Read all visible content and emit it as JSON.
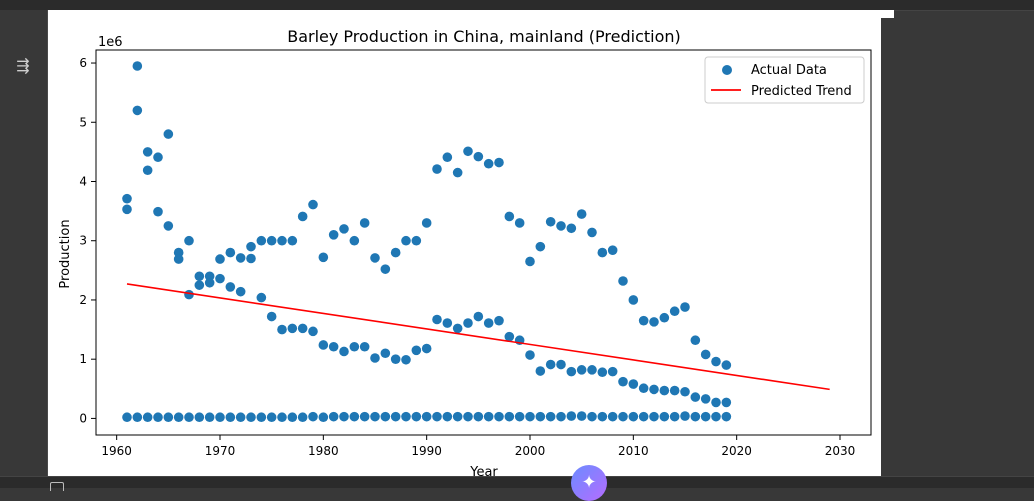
{
  "ui": {
    "gutter_icon": "output-collapse-icon",
    "fab_icon": "sparkle-icon",
    "accent_color": "#1f77b4",
    "trend_color": "#ff0000"
  },
  "chart_data": {
    "type": "scatter",
    "title": "Barley Production in China, mainland (Prediction)",
    "xlabel": "Year",
    "ylabel": "Production",
    "y_offset_label": "1e6",
    "xlim": [
      1958,
      2033
    ],
    "ylim": [
      -0.28,
      6.22
    ],
    "xticks": [
      1960,
      1970,
      1980,
      1990,
      2000,
      2010,
      2020,
      2030
    ],
    "yticks": [
      0,
      1,
      2,
      3,
      4,
      5,
      6
    ],
    "legend_position": "top-right",
    "series": [
      {
        "name": "Actual Data",
        "kind": "scatter",
        "color": "#1f77b4",
        "points": [
          [
            1961,
            3.71
          ],
          [
            1961,
            3.53
          ],
          [
            1962,
            5.95
          ],
          [
            1962,
            5.2
          ],
          [
            1963,
            4.5
          ],
          [
            1963,
            4.19
          ],
          [
            1964,
            4.41
          ],
          [
            1964,
            3.49
          ],
          [
            1965,
            4.8
          ],
          [
            1965,
            3.25
          ],
          [
            1966,
            2.8
          ],
          [
            1966,
            2.69
          ],
          [
            1967,
            3.0
          ],
          [
            1967,
            2.09
          ],
          [
            1968,
            2.4
          ],
          [
            1968,
            2.25
          ],
          [
            1969,
            2.4
          ],
          [
            1969,
            2.29
          ],
          [
            1970,
            2.69
          ],
          [
            1970,
            2.36
          ],
          [
            1971,
            2.8
          ],
          [
            1971,
            2.22
          ],
          [
            1972,
            2.71
          ],
          [
            1972,
            2.14
          ],
          [
            1973,
            2.9
          ],
          [
            1973,
            2.7
          ],
          [
            1974,
            3.0
          ],
          [
            1974,
            2.04
          ],
          [
            1975,
            3.0
          ],
          [
            1975,
            1.72
          ],
          [
            1976,
            3.0
          ],
          [
            1976,
            1.5
          ],
          [
            1977,
            3.0
          ],
          [
            1977,
            1.52
          ],
          [
            1978,
            3.41
          ],
          [
            1978,
            1.52
          ],
          [
            1979,
            3.61
          ],
          [
            1979,
            1.47
          ],
          [
            1980,
            2.72
          ],
          [
            1980,
            1.24
          ],
          [
            1981,
            3.1
          ],
          [
            1981,
            1.21
          ],
          [
            1982,
            3.2
          ],
          [
            1982,
            1.13
          ],
          [
            1983,
            3.0
          ],
          [
            1983,
            1.21
          ],
          [
            1984,
            3.3
          ],
          [
            1984,
            1.21
          ],
          [
            1985,
            2.71
          ],
          [
            1985,
            1.02
          ],
          [
            1986,
            2.52
          ],
          [
            1986,
            1.1
          ],
          [
            1987,
            2.8
          ],
          [
            1987,
            1.0
          ],
          [
            1988,
            3.0
          ],
          [
            1988,
            0.99
          ],
          [
            1989,
            3.0
          ],
          [
            1989,
            1.15
          ],
          [
            1990,
            3.3
          ],
          [
            1990,
            1.18
          ],
          [
            1991,
            4.21
          ],
          [
            1991,
            1.67
          ],
          [
            1992,
            4.41
          ],
          [
            1992,
            1.61
          ],
          [
            1993,
            4.15
          ],
          [
            1993,
            1.52
          ],
          [
            1994,
            4.51
          ],
          [
            1994,
            1.61
          ],
          [
            1995,
            4.42
          ],
          [
            1995,
            1.72
          ],
          [
            1996,
            4.3
          ],
          [
            1996,
            1.61
          ],
          [
            1997,
            4.32
          ],
          [
            1997,
            1.65
          ],
          [
            1998,
            3.41
          ],
          [
            1998,
            1.38
          ],
          [
            1999,
            3.3
          ],
          [
            1999,
            1.32
          ],
          [
            2000,
            2.65
          ],
          [
            2000,
            1.07
          ],
          [
            2001,
            2.9
          ],
          [
            2001,
            0.8
          ],
          [
            2002,
            3.32
          ],
          [
            2002,
            0.91
          ],
          [
            2003,
            3.25
          ],
          [
            2003,
            0.91
          ],
          [
            2004,
            3.21
          ],
          [
            2004,
            0.79
          ],
          [
            2005,
            3.45
          ],
          [
            2005,
            0.82
          ],
          [
            2006,
            3.14
          ],
          [
            2006,
            0.82
          ],
          [
            2007,
            2.8
          ],
          [
            2007,
            0.78
          ],
          [
            2008,
            2.84
          ],
          [
            2008,
            0.79
          ],
          [
            2009,
            2.32
          ],
          [
            2009,
            0.62
          ],
          [
            2010,
            2.0
          ],
          [
            2010,
            0.58
          ],
          [
            2011,
            1.65
          ],
          [
            2011,
            0.51
          ],
          [
            2012,
            1.63
          ],
          [
            2012,
            0.49
          ],
          [
            2013,
            1.7
          ],
          [
            2013,
            0.47
          ],
          [
            2014,
            1.81
          ],
          [
            2014,
            0.47
          ],
          [
            2015,
            1.88
          ],
          [
            2015,
            0.45
          ],
          [
            2016,
            1.32
          ],
          [
            2016,
            0.36
          ],
          [
            2017,
            1.08
          ],
          [
            2017,
            0.33
          ],
          [
            2018,
            0.96
          ],
          [
            2018,
            0.27
          ],
          [
            2019,
            0.9
          ],
          [
            2019,
            0.27
          ],
          [
            1961,
            0.02
          ],
          [
            1962,
            0.02
          ],
          [
            1963,
            0.02
          ],
          [
            1964,
            0.02
          ],
          [
            1965,
            0.02
          ],
          [
            1966,
            0.02
          ],
          [
            1967,
            0.02
          ],
          [
            1968,
            0.02
          ],
          [
            1969,
            0.02
          ],
          [
            1970,
            0.02
          ],
          [
            1971,
            0.02
          ],
          [
            1972,
            0.02
          ],
          [
            1973,
            0.02
          ],
          [
            1974,
            0.02
          ],
          [
            1975,
            0.02
          ],
          [
            1976,
            0.02
          ],
          [
            1977,
            0.02
          ],
          [
            1978,
            0.02
          ],
          [
            1979,
            0.03
          ],
          [
            1980,
            0.02
          ],
          [
            1981,
            0.03
          ],
          [
            1982,
            0.03
          ],
          [
            1983,
            0.03
          ],
          [
            1984,
            0.03
          ],
          [
            1985,
            0.03
          ],
          [
            1986,
            0.03
          ],
          [
            1987,
            0.03
          ],
          [
            1988,
            0.03
          ],
          [
            1989,
            0.03
          ],
          [
            1990,
            0.03
          ],
          [
            1991,
            0.03
          ],
          [
            1992,
            0.03
          ],
          [
            1993,
            0.03
          ],
          [
            1994,
            0.03
          ],
          [
            1995,
            0.03
          ],
          [
            1996,
            0.03
          ],
          [
            1997,
            0.03
          ],
          [
            1998,
            0.03
          ],
          [
            1999,
            0.03
          ],
          [
            2000,
            0.03
          ],
          [
            2001,
            0.03
          ],
          [
            2002,
            0.03
          ],
          [
            2003,
            0.03
          ],
          [
            2004,
            0.04
          ],
          [
            2005,
            0.04
          ],
          [
            2006,
            0.03
          ],
          [
            2007,
            0.03
          ],
          [
            2008,
            0.03
          ],
          [
            2009,
            0.03
          ],
          [
            2010,
            0.03
          ],
          [
            2011,
            0.03
          ],
          [
            2012,
            0.03
          ],
          [
            2013,
            0.03
          ],
          [
            2014,
            0.03
          ],
          [
            2015,
            0.04
          ],
          [
            2016,
            0.03
          ],
          [
            2017,
            0.03
          ],
          [
            2018,
            0.03
          ],
          [
            2019,
            0.03
          ]
        ]
      },
      {
        "name": "Predicted Trend",
        "kind": "line",
        "color": "#ff0000",
        "points": [
          [
            1961,
            2.27
          ],
          [
            2029,
            0.49
          ]
        ]
      }
    ]
  }
}
